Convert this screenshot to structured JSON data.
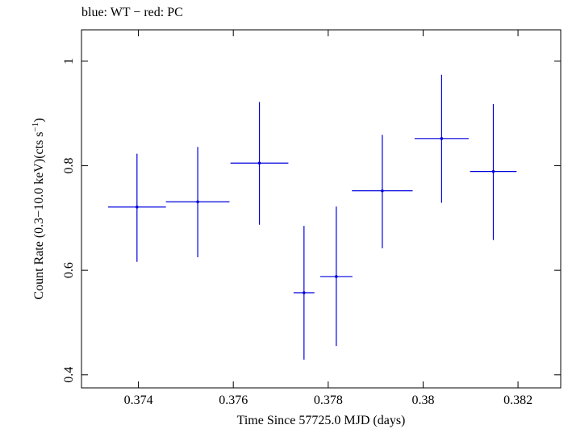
{
  "chart_data": {
    "type": "scatter",
    "title": "blue: WT − red: PC",
    "xlabel": "Time Since 57725.0 MJD (days)",
    "ylabel_main": "Count Rate (0.3−10.0 keV)(cts s",
    "ylabel_sup": "−1",
    "ylabel_close": ")",
    "xlim": [
      0.3728,
      0.3829
    ],
    "ylim": [
      0.375,
      1.06
    ],
    "xticks": [
      {
        "value": 0.374,
        "label": "0.374"
      },
      {
        "value": 0.376,
        "label": "0.376"
      },
      {
        "value": 0.378,
        "label": "0.378"
      },
      {
        "value": 0.38,
        "label": "0.38"
      },
      {
        "value": 0.382,
        "label": "0.382"
      }
    ],
    "yticks": [
      {
        "value": 0.4,
        "label": "0.4"
      },
      {
        "value": 0.6,
        "label": "0.6"
      },
      {
        "value": 0.8,
        "label": "0.8"
      },
      {
        "value": 1.0,
        "label": "1"
      }
    ],
    "grid": false,
    "series": [
      {
        "color": "#0000dd",
        "points": [
          {
            "x": 0.37397,
            "xerr": 0.00061,
            "y": 0.721,
            "ylo": 0.616,
            "yhi": 0.823
          },
          {
            "x": 0.37525,
            "xerr": 0.00067,
            "y": 0.731,
            "ylo": 0.625,
            "yhi": 0.836
          },
          {
            "x": 0.37655,
            "xerr": 0.00061,
            "y": 0.805,
            "ylo": 0.687,
            "yhi": 0.922
          },
          {
            "x": 0.37749,
            "xerr": 0.00022,
            "y": 0.557,
            "ylo": 0.429,
            "yhi": 0.685
          },
          {
            "x": 0.37817,
            "xerr": 0.00034,
            "y": 0.588,
            "ylo": 0.455,
            "yhi": 0.722
          },
          {
            "x": 0.37914,
            "xerr": 0.00064,
            "y": 0.752,
            "ylo": 0.642,
            "yhi": 0.859
          },
          {
            "x": 0.38039,
            "xerr": 0.00057,
            "y": 0.852,
            "ylo": 0.729,
            "yhi": 0.974
          },
          {
            "x": 0.38148,
            "xerr": 0.00049,
            "y": 0.789,
            "ylo": 0.658,
            "yhi": 0.918
          }
        ]
      }
    ]
  }
}
